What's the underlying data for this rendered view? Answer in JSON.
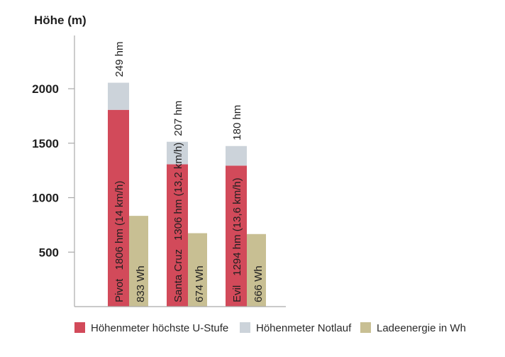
{
  "chart_data": {
    "type": "bar",
    "ylabel": "Höhe (m)",
    "ylim": [
      0,
      2300
    ],
    "yticks": [
      500,
      1000,
      1500,
      2000
    ],
    "grid": false,
    "legend_position": "bottom",
    "categories": [
      "Pivot",
      "Santa Cruz",
      "Evil"
    ],
    "series": [
      {
        "name": "Höhenmeter höchste U-Stufe",
        "color": "#d24a5a",
        "stack": "hoehe",
        "values": [
          1806,
          1306,
          1294
        ],
        "labels": [
          "1806 hm (14 km/h)",
          "1306 hm (13,2 km/h)",
          "1294 hm (13,6 km/h)"
        ]
      },
      {
        "name": "Höhenmeter Notlauf",
        "color": "#ccd3da",
        "stack": "hoehe",
        "values": [
          249,
          207,
          180
        ],
        "labels": [
          "249 hm",
          "207 hm",
          "180 hm"
        ]
      },
      {
        "name": "Ladeenergie in Wh",
        "color": "#c8bf93",
        "stack": "energie",
        "values": [
          833,
          674,
          666
        ],
        "labels": [
          "833 Wh",
          "674 Wh",
          "666 Wh"
        ]
      }
    ]
  }
}
